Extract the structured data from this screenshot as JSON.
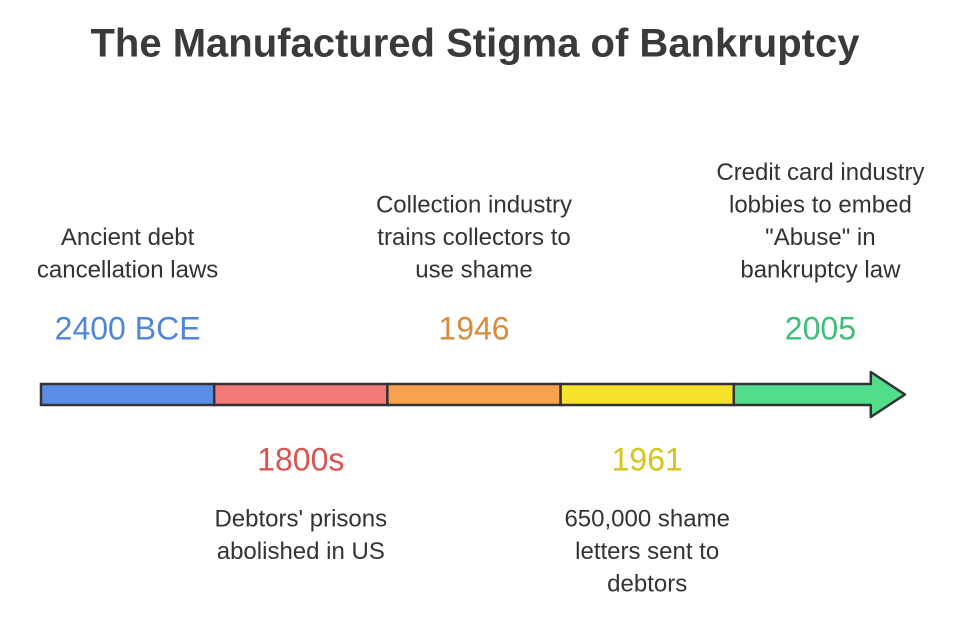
{
  "title": "The Manufactured Stigma of Bankruptcy",
  "events": [
    {
      "year": "2400 BCE",
      "description": [
        "Ancient debt",
        "cancellation laws"
      ],
      "color": "#5a8ee6",
      "text_color": "#4f86d9"
    },
    {
      "year": "1800s",
      "description": [
        "Debtors' prisons",
        "abolished in US"
      ],
      "color": "#f47a78",
      "text_color": "#d9534f"
    },
    {
      "year": "1946",
      "description": [
        "Collection industry",
        "trains collectors to",
        "use shame"
      ],
      "color": "#f8a24e",
      "text_color": "#d98a3a"
    },
    {
      "year": "1961",
      "description": [
        "650,000 shame",
        "letters sent to",
        "debtors"
      ],
      "color": "#f6e22c",
      "text_color": "#d6c41c"
    },
    {
      "year": "2005",
      "description": [
        "Credit card industry",
        "lobbies to embed",
        "\"Abuse\" in",
        "bankruptcy law"
      ],
      "color": "#52dd8c",
      "text_color": "#3cbf77"
    }
  ]
}
